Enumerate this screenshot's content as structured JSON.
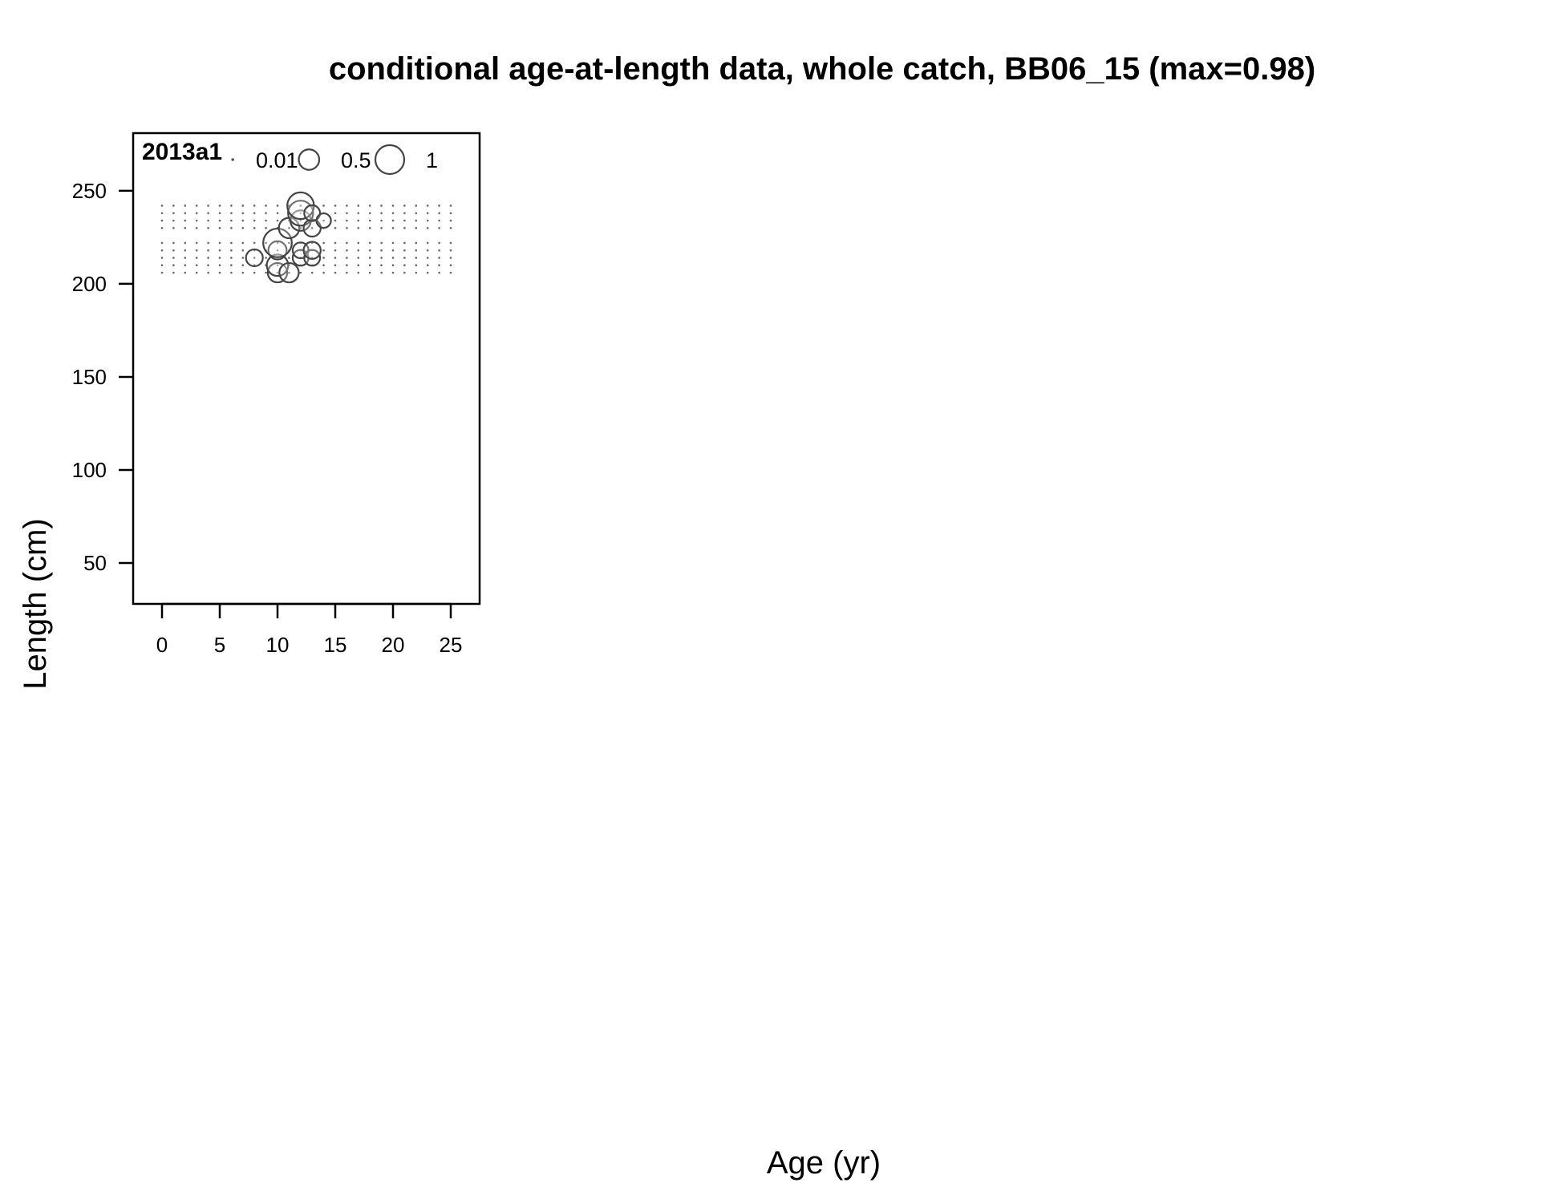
{
  "chart_data": {
    "type": "scatter",
    "title": "conditional age-at-length data, whole catch, BB06_15 (max=0.98)",
    "xlabel": "Age (yr)",
    "ylabel": "Length (cm)",
    "panel_label": "2013a1",
    "xlim": [
      -2.5,
      27.5
    ],
    "ylim": [
      28,
      281
    ],
    "x_ticks": [
      0,
      5,
      10,
      15,
      20,
      25
    ],
    "y_ticks": [
      50,
      100,
      150,
      200,
      250
    ],
    "x_tick_labels": [
      "0",
      "5",
      "10",
      "15",
      "20",
      "25"
    ],
    "y_tick_labels": [
      "50",
      "100",
      "150",
      "200",
      "250"
    ],
    "grid": false,
    "legend": {
      "placement": "top",
      "entries": [
        {
          "label": "0.01",
          "value": 0.01
        },
        {
          "label": "0.5",
          "value": 0.5
        },
        {
          "label": "1",
          "value": 1
        }
      ]
    },
    "zero_dot_grid": {
      "ages": [
        0,
        25
      ],
      "lengths": [
        206,
        210,
        214,
        218,
        222,
        230,
        234,
        238,
        242
      ]
    },
    "points": [
      {
        "age": 8,
        "length": 214,
        "value": 0.34
      },
      {
        "age": 10,
        "length": 206,
        "value": 0.45
      },
      {
        "age": 10,
        "length": 210,
        "value": 0.55
      },
      {
        "age": 10,
        "length": 218,
        "value": 0.4
      },
      {
        "age": 10,
        "length": 222,
        "value": 0.98
      },
      {
        "age": 11,
        "length": 206,
        "value": 0.45
      },
      {
        "age": 11,
        "length": 230,
        "value": 0.5
      },
      {
        "age": 12,
        "length": 214,
        "value": 0.3
      },
      {
        "age": 12,
        "length": 218,
        "value": 0.3
      },
      {
        "age": 12,
        "length": 234,
        "value": 0.5
      },
      {
        "age": 12,
        "length": 238,
        "value": 0.75
      },
      {
        "age": 12,
        "length": 242,
        "value": 0.85
      },
      {
        "age": 13,
        "length": 214,
        "value": 0.3
      },
      {
        "age": 13,
        "length": 218,
        "value": 0.35
      },
      {
        "age": 13,
        "length": 230,
        "value": 0.35
      },
      {
        "age": 13,
        "length": 238,
        "value": 0.3
      },
      {
        "age": 14,
        "length": 234,
        "value": 0.25
      }
    ]
  }
}
